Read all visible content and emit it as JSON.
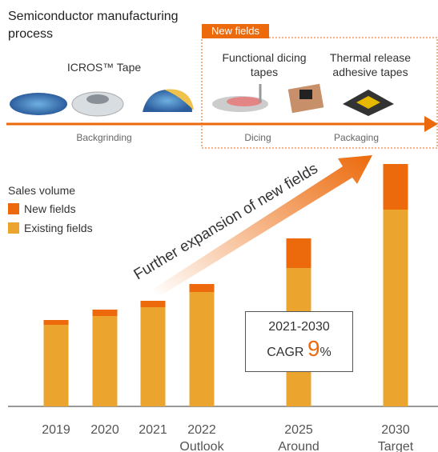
{
  "process": {
    "title": "Semiconductor manufacturing process",
    "tape": "ICROS™ Tape",
    "new_fields": "New fields",
    "functional": "Functional dicing tapes",
    "thermal": "Thermal release adhesive tapes",
    "steps": [
      "Backgrinding",
      "Dicing",
      "Packaging"
    ]
  },
  "chart_data": {
    "type": "bar",
    "stacked": true,
    "legend_title": "Sales volume",
    "categories": [
      "2019",
      "2020",
      "2021",
      "2022",
      "2025",
      "2030"
    ],
    "category_notes": [
      null,
      null,
      null,
      "Outlook",
      "Around",
      "Target"
    ],
    "series": [
      {
        "name": "New fields",
        "color": "#ec6a0c",
        "values": [
          6,
          8,
          8,
          10,
          37,
          57
        ]
      },
      {
        "name": "Existing fields",
        "color": "#eba52e",
        "values": [
          102,
          113,
          124,
          143,
          173,
          246
        ]
      }
    ],
    "annotation": "Further expansion of new fields",
    "cagr": {
      "period": "2021-2030",
      "label": "CAGR",
      "value": 9,
      "unit": "%"
    }
  }
}
